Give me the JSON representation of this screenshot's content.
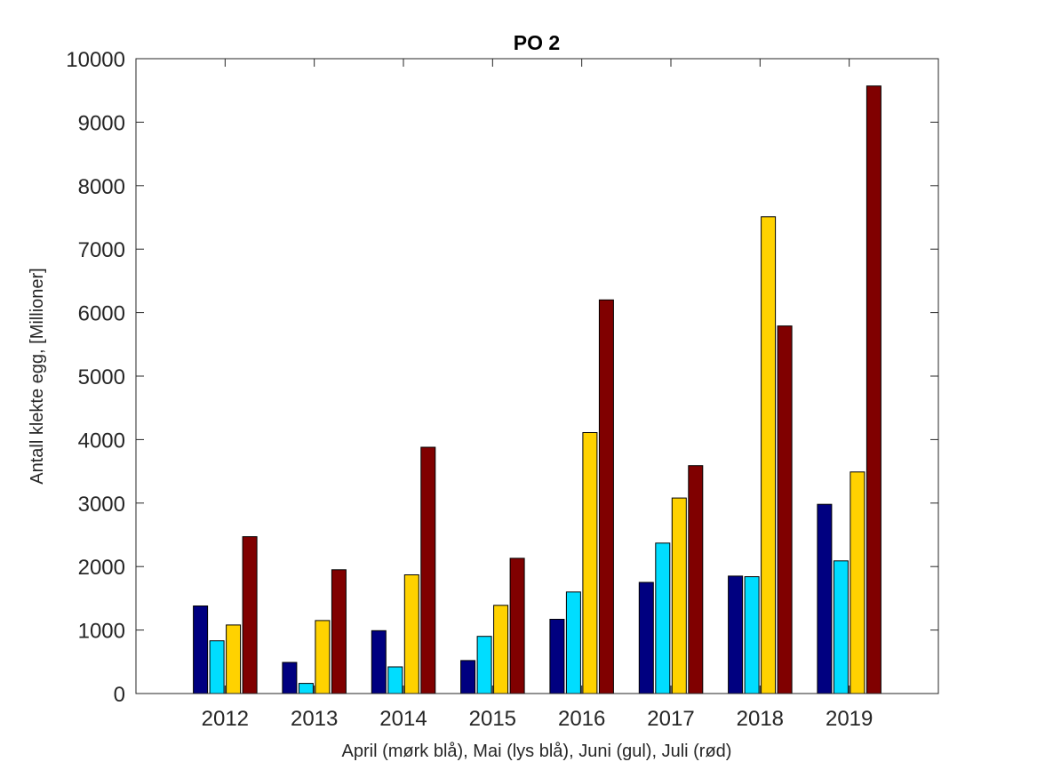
{
  "chart_data": {
    "type": "bar",
    "title": "PO 2",
    "xlabel": "April (mørk blå), Mai (lys blå), Juni (gul), Juli (rød)",
    "ylabel": "Antall klekte egg, [Millioner]",
    "ylim": [
      0,
      10000
    ],
    "yticks": [
      "0",
      "1000",
      "2000",
      "3000",
      "4000",
      "5000",
      "6000",
      "7000",
      "8000",
      "9000",
      "10000"
    ],
    "categories": [
      "2012",
      "2013",
      "2014",
      "2015",
      "2016",
      "2017",
      "2018",
      "2019"
    ],
    "grid": false,
    "legend": "none",
    "series": [
      {
        "color": "#000080",
        "values": [
          1380,
          490,
          990,
          520,
          1170,
          1750,
          1850,
          2980
        ]
      },
      {
        "color": "#00DDFF",
        "values": [
          830,
          160,
          420,
          900,
          1600,
          2370,
          1840,
          2090
        ]
      },
      {
        "color": "#FFD200",
        "values": [
          1080,
          1150,
          1870,
          1390,
          4110,
          3080,
          7510,
          3490
        ]
      },
      {
        "color": "#800000",
        "values": [
          2470,
          1950,
          3880,
          2130,
          6200,
          3590,
          5790,
          9570
        ]
      }
    ]
  }
}
